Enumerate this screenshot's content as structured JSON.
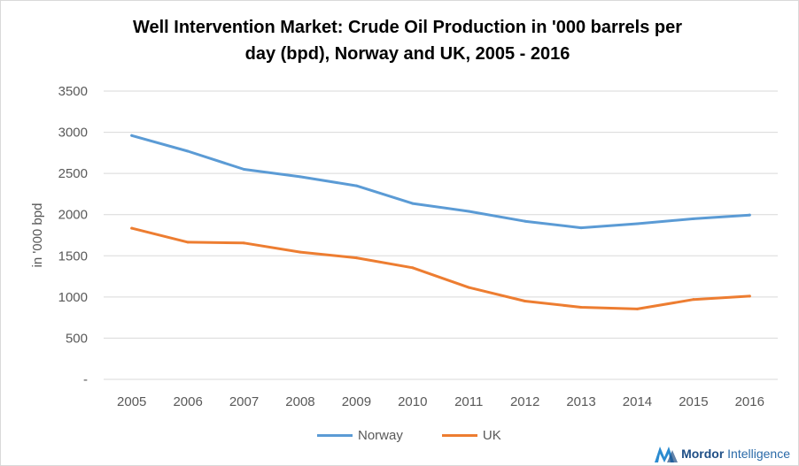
{
  "chart_data": {
    "type": "line",
    "title_line1": "Well Intervention Market: Crude Oil Production  in '000 barrels per",
    "title_line2": "day (bpd), Norway and UK, 2005 - 2016",
    "xlabel": "",
    "ylabel": "in '000 bpd",
    "x": [
      "2005",
      "2006",
      "2007",
      "2008",
      "2009",
      "2010",
      "2011",
      "2012",
      "2013",
      "2014",
      "2015",
      "2016"
    ],
    "y_ticks": [
      "-",
      "500",
      "1000",
      "1500",
      "2000",
      "2500",
      "3000",
      "3500"
    ],
    "ylim": [
      0,
      3500
    ],
    "grid": true,
    "legend_position": "bottom",
    "series": [
      {
        "name": "Norway",
        "color": "#5b9bd5",
        "values": [
          2960,
          2770,
          2550,
          2460,
          2350,
          2135,
          2040,
          1920,
          1840,
          1890,
          1950,
          1995
        ]
      },
      {
        "name": "UK",
        "color": "#ed7d31",
        "values": [
          1835,
          1665,
          1655,
          1545,
          1475,
          1355,
          1115,
          950,
          875,
          855,
          970,
          1010
        ]
      }
    ]
  },
  "watermark": {
    "brand_bold": "Mordor",
    "brand_rest": " Intelligence"
  }
}
